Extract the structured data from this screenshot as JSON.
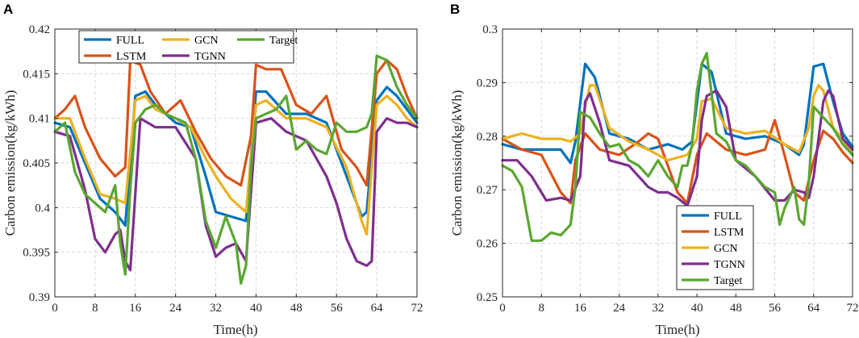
{
  "colors": {
    "FULL": "#0072BD",
    "LSTM": "#D95319",
    "GCN": "#EDB120",
    "TGNN": "#7E2F8E",
    "Target": "#5AA632"
  },
  "chart_data": [
    {
      "type": "line",
      "panel": "A",
      "xlabel": "Time(h)",
      "ylabel": "Carbon emission(kg/kWh)",
      "xlim": [
        0,
        72
      ],
      "ylim": [
        0.39,
        0.42
      ],
      "xticks": [
        0,
        8,
        16,
        24,
        32,
        40,
        48,
        56,
        64,
        72
      ],
      "yticks": [
        0.39,
        0.395,
        0.4,
        0.405,
        0.41,
        0.415,
        0.42
      ],
      "ytick_labels": [
        "0.39",
        "0.395",
        "0.4",
        "0.405",
        "0.41",
        "0.415",
        "0.42"
      ],
      "grid": true,
      "legend": {
        "placement": "top-left",
        "columns": 3,
        "order": [
          "FULL",
          "GCN",
          "Target",
          "LSTM",
          "TGNN"
        ]
      },
      "series": [
        {
          "name": "FULL",
          "x": [
            0,
            3,
            6,
            9,
            12,
            14,
            16,
            18,
            20,
            24,
            27,
            30,
            32,
            35,
            38,
            40,
            42,
            46,
            50,
            54,
            58,
            61,
            62,
            64,
            66,
            68,
            70,
            72
          ],
          "values": [
            0.4095,
            0.409,
            0.405,
            0.401,
            0.3995,
            0.398,
            0.4125,
            0.413,
            0.4115,
            0.4095,
            0.409,
            0.4035,
            0.3995,
            0.399,
            0.3985,
            0.413,
            0.413,
            0.4105,
            0.4105,
            0.4095,
            0.4035,
            0.399,
            0.3995,
            0.412,
            0.4135,
            0.4125,
            0.411,
            0.4095
          ]
        },
        {
          "name": "LSTM",
          "x": [
            0,
            2,
            4,
            6,
            9,
            12,
            14,
            15,
            17,
            19,
            22,
            25,
            28,
            31,
            34,
            37,
            39,
            40,
            42,
            45,
            48,
            51,
            54,
            57,
            60,
            62,
            64,
            66,
            68,
            70,
            72
          ],
          "values": [
            0.41,
            0.411,
            0.4125,
            0.409,
            0.4055,
            0.4035,
            0.4045,
            0.4165,
            0.416,
            0.413,
            0.4105,
            0.412,
            0.4085,
            0.4055,
            0.4035,
            0.4025,
            0.408,
            0.416,
            0.4155,
            0.4155,
            0.4115,
            0.4105,
            0.4125,
            0.4065,
            0.4045,
            0.4025,
            0.415,
            0.4165,
            0.4155,
            0.4125,
            0.41
          ]
        },
        {
          "name": "GCN",
          "x": [
            0,
            3,
            6,
            9,
            12,
            14,
            16,
            18,
            20,
            24,
            27,
            30,
            32,
            35,
            38,
            40,
            42,
            46,
            50,
            54,
            58,
            61,
            62,
            64,
            66,
            68,
            70,
            72
          ],
          "values": [
            0.41,
            0.41,
            0.4055,
            0.4015,
            0.401,
            0.4005,
            0.412,
            0.4125,
            0.411,
            0.41,
            0.409,
            0.4055,
            0.4035,
            0.401,
            0.3995,
            0.4115,
            0.412,
            0.41,
            0.41,
            0.409,
            0.4045,
            0.3985,
            0.397,
            0.4115,
            0.4125,
            0.4115,
            0.41,
            0.409
          ]
        },
        {
          "name": "TGNN",
          "x": [
            0,
            3,
            6,
            8,
            10,
            12,
            13,
            14,
            15,
            17,
            20,
            24,
            28,
            30,
            32,
            34,
            36,
            38,
            40,
            43,
            46,
            50,
            54,
            56,
            58,
            60,
            62,
            63,
            64,
            66,
            68,
            70,
            72
          ],
          "values": [
            0.4085,
            0.408,
            0.402,
            0.3965,
            0.395,
            0.397,
            0.3975,
            0.394,
            0.393,
            0.41,
            0.409,
            0.409,
            0.4055,
            0.398,
            0.3945,
            0.3955,
            0.396,
            0.394,
            0.4095,
            0.41,
            0.4085,
            0.4075,
            0.4035,
            0.4005,
            0.3965,
            0.394,
            0.3935,
            0.394,
            0.4085,
            0.41,
            0.4095,
            0.4095,
            0.409
          ]
        },
        {
          "name": "Target",
          "x": [
            0,
            2,
            4,
            6,
            8,
            10,
            12,
            13,
            14,
            15,
            16,
            18,
            20,
            22,
            24,
            26,
            28,
            30,
            32,
            34,
            36,
            37,
            38,
            39,
            40,
            42,
            44,
            46,
            48,
            50,
            52,
            54,
            56,
            58,
            60,
            62,
            63,
            64,
            66,
            68,
            70,
            72
          ],
          "values": [
            0.4085,
            0.4095,
            0.404,
            0.4015,
            0.4005,
            0.3995,
            0.4025,
            0.396,
            0.3925,
            0.402,
            0.4095,
            0.411,
            0.4115,
            0.4105,
            0.41,
            0.4095,
            0.4055,
            0.3985,
            0.3955,
            0.399,
            0.396,
            0.3915,
            0.3935,
            0.4045,
            0.41,
            0.4105,
            0.411,
            0.4125,
            0.4065,
            0.4075,
            0.4065,
            0.406,
            0.4095,
            0.4085,
            0.4085,
            0.409,
            0.4105,
            0.417,
            0.4165,
            0.4135,
            0.4115,
            0.41
          ]
        }
      ]
    },
    {
      "type": "line",
      "panel": "B",
      "xlabel": "Time(h)",
      "ylabel": "Carbon emission(kg/kWh)",
      "xlim": [
        0,
        72
      ],
      "ylim": [
        0.25,
        0.3
      ],
      "xticks": [
        0,
        8,
        16,
        24,
        32,
        40,
        48,
        56,
        64,
        72
      ],
      "yticks": [
        0.25,
        0.26,
        0.27,
        0.28,
        0.29,
        0.3
      ],
      "ytick_labels": [
        "0.25",
        "0.26",
        "0.27",
        "0.28",
        "0.29",
        "0.3"
      ],
      "grid": true,
      "legend": {
        "placement": "bottom-right",
        "columns": 1,
        "order": [
          "FULL",
          "LSTM",
          "GCN",
          "TGNN",
          "Target"
        ]
      },
      "series": [
        {
          "name": "FULL",
          "x": [
            0,
            4,
            8,
            12,
            14,
            15,
            17,
            19,
            22,
            26,
            30,
            34,
            37,
            39,
            41,
            43,
            46,
            50,
            54,
            58,
            61,
            62,
            64,
            66,
            68,
            70,
            72
          ],
          "values": [
            0.2785,
            0.2775,
            0.2775,
            0.2775,
            0.275,
            0.279,
            0.2935,
            0.291,
            0.2805,
            0.2795,
            0.2775,
            0.2785,
            0.2775,
            0.279,
            0.2935,
            0.292,
            0.2805,
            0.2795,
            0.28,
            0.2785,
            0.2765,
            0.2785,
            0.293,
            0.2935,
            0.2865,
            0.2805,
            0.278
          ]
        },
        {
          "name": "LSTM",
          "x": [
            0,
            4,
            8,
            12,
            14,
            15,
            17,
            20,
            24,
            28,
            30,
            32,
            36,
            38,
            40,
            42,
            46,
            50,
            54,
            56,
            58,
            60,
            62,
            64,
            66,
            68,
            70,
            72
          ],
          "values": [
            0.2795,
            0.2775,
            0.2765,
            0.2695,
            0.2675,
            0.2755,
            0.2805,
            0.2775,
            0.2765,
            0.279,
            0.2805,
            0.2795,
            0.2695,
            0.2675,
            0.2765,
            0.2805,
            0.2775,
            0.2765,
            0.2775,
            0.283,
            0.2765,
            0.2695,
            0.268,
            0.2755,
            0.281,
            0.2795,
            0.277,
            0.275
          ]
        },
        {
          "name": "GCN",
          "x": [
            0,
            4,
            8,
            12,
            14,
            16,
            17,
            18,
            19,
            22,
            26,
            30,
            34,
            38,
            40,
            41,
            43,
            46,
            50,
            54,
            58,
            61,
            63,
            64,
            65,
            66,
            68,
            70,
            72
          ],
          "values": [
            0.2795,
            0.2805,
            0.2795,
            0.2795,
            0.279,
            0.2805,
            0.2855,
            0.2895,
            0.2895,
            0.2815,
            0.279,
            0.2775,
            0.2755,
            0.2765,
            0.2795,
            0.2865,
            0.287,
            0.2815,
            0.2805,
            0.281,
            0.2785,
            0.277,
            0.2815,
            0.2875,
            0.2895,
            0.2885,
            0.2815,
            0.2795,
            0.2765
          ]
        },
        {
          "name": "TGNN",
          "x": [
            0,
            3,
            6,
            9,
            12,
            14,
            16,
            17,
            18,
            20,
            22,
            26,
            30,
            32,
            34,
            36,
            38,
            40,
            41,
            42,
            44,
            46,
            48,
            52,
            56,
            58,
            60,
            62,
            63,
            64,
            66,
            67,
            68,
            70,
            72
          ],
          "values": [
            0.2755,
            0.2755,
            0.2725,
            0.268,
            0.2685,
            0.268,
            0.2725,
            0.2865,
            0.288,
            0.2825,
            0.2755,
            0.2745,
            0.2705,
            0.2695,
            0.2695,
            0.2685,
            0.267,
            0.2725,
            0.283,
            0.2875,
            0.2885,
            0.2855,
            0.2755,
            0.2725,
            0.268,
            0.268,
            0.27,
            0.2695,
            0.2685,
            0.2725,
            0.2865,
            0.2885,
            0.2875,
            0.2795,
            0.2775
          ]
        },
        {
          "name": "Target",
          "x": [
            0,
            2,
            4,
            5,
            6,
            8,
            10,
            12,
            13,
            14,
            15,
            16,
            18,
            20,
            22,
            24,
            26,
            28,
            30,
            32,
            34,
            36,
            37,
            38,
            39,
            40,
            41,
            42,
            44,
            46,
            48,
            50,
            52,
            54,
            56,
            57,
            58,
            60,
            61,
            62,
            63,
            64,
            66,
            68,
            70,
            72
          ],
          "values": [
            0.2745,
            0.2735,
            0.2705,
            0.2655,
            0.2605,
            0.2605,
            0.262,
            0.2615,
            0.2625,
            0.2635,
            0.2705,
            0.2845,
            0.2835,
            0.2805,
            0.278,
            0.2785,
            0.2755,
            0.2745,
            0.2725,
            0.2755,
            0.2725,
            0.2705,
            0.2745,
            0.2745,
            0.2785,
            0.2885,
            0.2935,
            0.2955,
            0.2805,
            0.279,
            0.2755,
            0.2745,
            0.2725,
            0.2705,
            0.2695,
            0.2635,
            0.2665,
            0.2705,
            0.2645,
            0.2635,
            0.2715,
            0.2855,
            0.2835,
            0.2815,
            0.2785,
            0.2765
          ]
        }
      ]
    }
  ]
}
